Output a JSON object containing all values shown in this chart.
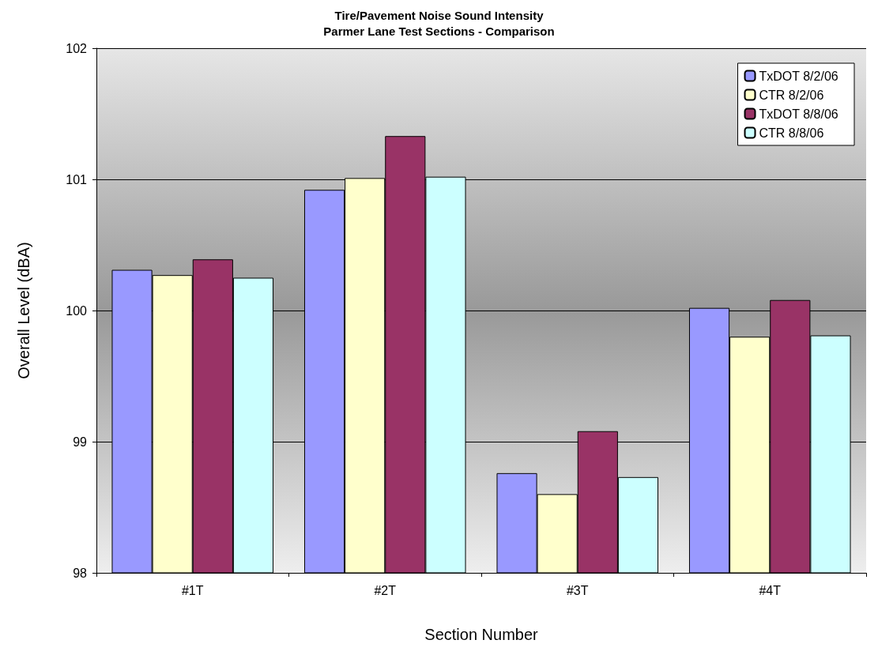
{
  "chart_data": {
    "type": "bar",
    "title": "Tire/Pavement Noise Sound Intensity\nParmer Lane Test Sections - Comparison",
    "xlabel": "Section Number",
    "ylabel": "Overall Level (dBA)",
    "categories": [
      "#1T",
      "#2T",
      "#3T",
      "#4T"
    ],
    "series": [
      {
        "name": "TxDOT 8/2/06",
        "color": "#9999ff",
        "values": [
          100.31,
          100.92,
          98.76,
          100.02
        ]
      },
      {
        "name": "CTR 8/2/06",
        "color": "#ffffcc",
        "values": [
          100.27,
          101.01,
          98.6,
          99.8
        ]
      },
      {
        "name": "TxDOT 8/8/06",
        "color": "#993366",
        "values": [
          100.39,
          101.33,
          99.08,
          100.08
        ]
      },
      {
        "name": "CTR 8/8/06",
        "color": "#ccffff",
        "values": [
          100.25,
          101.02,
          98.73,
          99.81
        ]
      }
    ],
    "ylim": [
      98,
      102
    ],
    "yticks": [
      98,
      99,
      100,
      101,
      102
    ],
    "grid": "y",
    "legend": "top right"
  }
}
